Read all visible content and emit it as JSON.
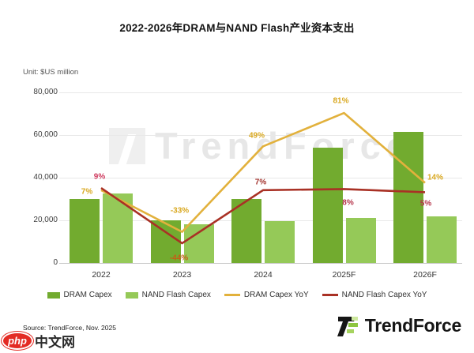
{
  "title": "2022-2026年DRAM与NAND Flash产业资本支出",
  "unit_label": "Unit: $US million",
  "watermark": "TrendForce",
  "source": "Source: TrendForce, Nov. 2025",
  "logo": {
    "text": "TrendForce"
  },
  "badge": {
    "php": "php",
    "cn": "中文网"
  },
  "legend": {
    "items": [
      {
        "label": "DRAM Capex"
      },
      {
        "label": "NAND Flash Capex"
      },
      {
        "label": "DRAM Capex YoY"
      },
      {
        "label": "NAND Flash Capex YoY"
      }
    ]
  },
  "chart_data": {
    "type": "bar+line combo",
    "title": "2022-2026年DRAM与NAND Flash产业资本支出",
    "ylabel": "Unit: $US million",
    "ylim": [
      0,
      80000
    ],
    "grid": true,
    "legend_position": "bottom",
    "categories": [
      "2022",
      "2023",
      "2024",
      "2025F",
      "2026F"
    ],
    "yticks": [
      {
        "label": "0",
        "value": 0
      },
      {
        "label": "20,000",
        "value": 20000
      },
      {
        "label": "40,000",
        "value": 40000
      },
      {
        "label": "60,000",
        "value": 60000
      },
      {
        "label": "80,000",
        "value": 80000
      }
    ],
    "series": [
      {
        "name": "DRAM Capex",
        "type": "bar",
        "color": "#72ab2f",
        "values": [
          30000,
          20000,
          30000,
          54000,
          61500
        ]
      },
      {
        "name": "NAND Flash Capex",
        "type": "bar",
        "color": "#95c958",
        "values": [
          32500,
          18000,
          19500,
          21000,
          22000
        ]
      },
      {
        "name": "DRAM Capex YoY",
        "type": "line",
        "color": "#e2b13c",
        "pct": [
          7,
          -33,
          49,
          81,
          14
        ],
        "labels": [
          "7%",
          "-33%",
          "49%",
          "81%",
          "14%"
        ],
        "label_colors": [
          "#d9a820",
          "#d9a820",
          "#d9a820",
          "#d9a820",
          "#d9a820"
        ],
        "label_offsets": [
          [
            -18,
            2
          ],
          [
            -3,
            -27
          ],
          [
            -8,
            -13
          ],
          [
            -4,
            -15
          ],
          [
            13,
            -7
          ]
        ]
      },
      {
        "name": "NAND Flash Capex YoY",
        "type": "line",
        "color": "#a93125",
        "pct": [
          9,
          -44,
          7,
          8,
          5
        ],
        "labels": [
          "9%",
          "-44%",
          "7%",
          "8%",
          "5%"
        ],
        "label_colors": [
          "#cf3a5e",
          "#c55e17",
          "#a3322c",
          "#b5344a",
          "#b5344a"
        ],
        "label_offsets": [
          [
            -2,
            -14
          ],
          [
            -4,
            19
          ],
          [
            -3,
            -10
          ],
          [
            5,
            18
          ],
          [
            1,
            15
          ]
        ]
      }
    ]
  }
}
